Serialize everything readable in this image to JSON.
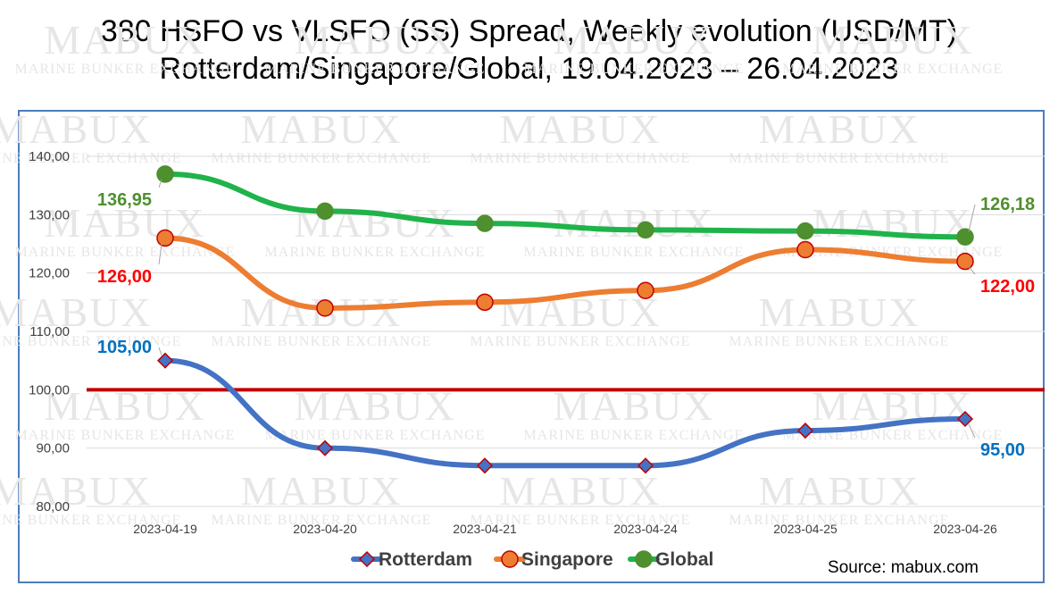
{
  "title": {
    "line1": "380 HSFO vs VLSFO (SS) Spread, Weekly evolution (USD/MT)",
    "line2": "Rotterdam/Singapore/Global, 19.04.2023 – 26.04.2023"
  },
  "watermark": {
    "brand": "MABUX",
    "tagline": "MARINE BUNKER EXCHANGE"
  },
  "source": "Source: mabux.com",
  "chart_data": {
    "type": "line",
    "categories": [
      "2023-04-19",
      "2023-04-20",
      "2023-04-21",
      "2023-04-24",
      "2023-04-25",
      "2023-04-26"
    ],
    "ylim": [
      80,
      140
    ],
    "yticks": [
      "80,00",
      "90,00",
      "100,00",
      "110,00",
      "120,00",
      "130,00",
      "140,00"
    ],
    "reference_line": {
      "value": 100,
      "color": "#c00000"
    },
    "legend_position": "bottom",
    "series": [
      {
        "name": "Rotterdam",
        "color": "#4472c4",
        "marker": "diamond",
        "label_color": "#0070c0",
        "values": [
          105,
          90,
          87,
          87,
          93,
          95
        ],
        "labels": {
          "first": "105,00",
          "last": "95,00"
        }
      },
      {
        "name": "Singapore",
        "color": "#ed7d31",
        "marker": "circle",
        "label_color": "#ff0000",
        "values": [
          126,
          114,
          115,
          117,
          124,
          122
        ],
        "labels": {
          "first": "126,00",
          "last": "122,00"
        }
      },
      {
        "name": "Global",
        "color": "#1fb34a",
        "marker": "circle",
        "marker_color": "#4e8f2e",
        "label_color": "#4e8f2e",
        "values": [
          136.95,
          130.6,
          128.5,
          127.4,
          127.2,
          126.18
        ],
        "labels": {
          "first": "136,95",
          "last": "126,18"
        }
      }
    ]
  }
}
